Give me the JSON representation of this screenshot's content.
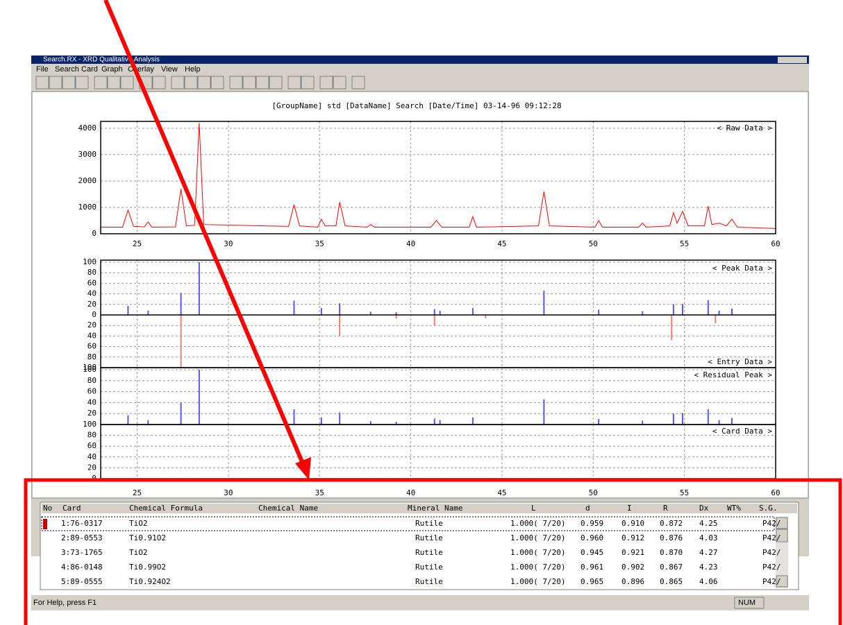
{
  "window": {
    "title": "Search.RX - XRD Qualitative Analysis",
    "menu": [
      "File",
      "Search",
      "Card",
      "Graph",
      "Overlay",
      "View",
      "Help"
    ]
  },
  "header": "[GroupName] std   [DataName] Search   [Date/Time] 03-14-96 09:12:28",
  "plots": {
    "xlim": [
      23,
      60
    ],
    "xticks": [
      25,
      30,
      35,
      40,
      45,
      50,
      55,
      60
    ],
    "raw": {
      "label": "< Raw Data >",
      "color": "#ff0000",
      "ylim": [
        0,
        4260
      ],
      "yticks": [
        0,
        1000,
        2000,
        3000,
        4000
      ],
      "x": [
        23,
        24.2,
        24.5,
        24.8,
        25.4,
        25.6,
        25.8,
        27.1,
        27.4,
        27.7,
        28.15,
        28.4,
        28.65,
        33.3,
        33.6,
        33.9,
        34.9,
        35.1,
        35.3,
        35.9,
        36.1,
        36.4,
        37.6,
        37.8,
        38.0,
        41.1,
        41.4,
        41.7,
        43.2,
        43.4,
        43.6,
        47.0,
        47.3,
        47.6,
        50.1,
        50.3,
        50.5,
        52.5,
        52.7,
        52.9,
        54.2,
        54.4,
        54.6,
        54.9,
        55.2,
        56.1,
        56.3,
        56.5,
        56.9,
        57.3,
        57.6,
        57.9,
        60
      ],
      "values": [
        250,
        250,
        900,
        280,
        260,
        450,
        250,
        260,
        1700,
        300,
        320,
        4200,
        350,
        280,
        1100,
        300,
        250,
        550,
        300,
        300,
        1200,
        300,
        250,
        350,
        250,
        250,
        500,
        250,
        250,
        650,
        250,
        300,
        1600,
        300,
        250,
        500,
        250,
        250,
        400,
        250,
        300,
        800,
        400,
        850,
        300,
        300,
        1050,
        350,
        400,
        300,
        550,
        250,
        200
      ]
    },
    "pct_ylim": [
      0,
      100
    ],
    "pct_ticks": [
      0,
      20,
      40,
      60,
      80,
      100
    ],
    "peak": {
      "label": "< Peak Data >",
      "color": "#5555ff",
      "x": [
        24.5,
        25.6,
        27.4,
        28.4,
        33.6,
        35.1,
        36.1,
        37.8,
        39.2,
        41.3,
        41.6,
        43.4,
        47.3,
        50.3,
        52.7,
        54.4,
        54.9,
        56.3,
        56.9,
        57.6
      ],
      "values": [
        17,
        8,
        42,
        100,
        27,
        13,
        22,
        6,
        5,
        11,
        8,
        13,
        46,
        10,
        7,
        20,
        21,
        28,
        8,
        12
      ]
    },
    "entry": {
      "label": "< Entry Data >",
      "color": "#ff7777",
      "x": [
        27.4,
        36.1,
        39.2,
        41.3,
        44.1,
        54.3,
        56.7
      ],
      "values": [
        100,
        40,
        7,
        20,
        6,
        48,
        16
      ]
    },
    "residual": {
      "label": "< Residual Peak >",
      "color": "#5555ff",
      "values": [
        17,
        8,
        40,
        100,
        28,
        13,
        22,
        6,
        5,
        11,
        8,
        13,
        46,
        10,
        7,
        20,
        21,
        28,
        8,
        12
      ]
    },
    "card": {
      "label": "< Card Data >"
    }
  },
  "table": {
    "columns": [
      "No",
      "Card",
      "Chemical Formula",
      "Chemical Name",
      "Mineral Name",
      "L",
      "d",
      "I",
      "R",
      "Dx",
      "WT%",
      "S.G."
    ],
    "rows": [
      {
        "card": "1:76-0317",
        "formula": "TiO2",
        "mineral": "Rutile",
        "L": "1.000( 7/20)",
        "d": "0.959",
        "I": "0.910",
        "R": "0.872",
        "Dx": "4.25",
        "sg": "P42/"
      },
      {
        "card": "2:89-0553",
        "formula": "Ti0.91O2",
        "mineral": "Rutile",
        "L": "1.000( 7/20)",
        "d": "0.960",
        "I": "0.912",
        "R": "0.876",
        "Dx": "4.03",
        "sg": "P42/"
      },
      {
        "card": "3:73-1765",
        "formula": "TiO2",
        "mineral": "Rutile",
        "L": "1.000( 7/20)",
        "d": "0.945",
        "I": "0.921",
        "R": "0.870",
        "Dx": "4.27",
        "sg": "P42/"
      },
      {
        "card": "4:86-0148",
        "formula": "Ti0.99O2",
        "mineral": "Rutile",
        "L": "1.000( 7/20)",
        "d": "0.961",
        "I": "0.902",
        "R": "0.867",
        "Dx": "4.23",
        "sg": "P42/"
      },
      {
        "card": "5:89-0555",
        "formula": "Ti0.924O2",
        "mineral": "Rutile",
        "L": "1.000( 7/20)",
        "d": "0.965",
        "I": "0.896",
        "R": "0.865",
        "Dx": "4.06",
        "sg": "P42/"
      }
    ]
  },
  "status": {
    "help": "For Help, press F1",
    "num": "NUM"
  }
}
